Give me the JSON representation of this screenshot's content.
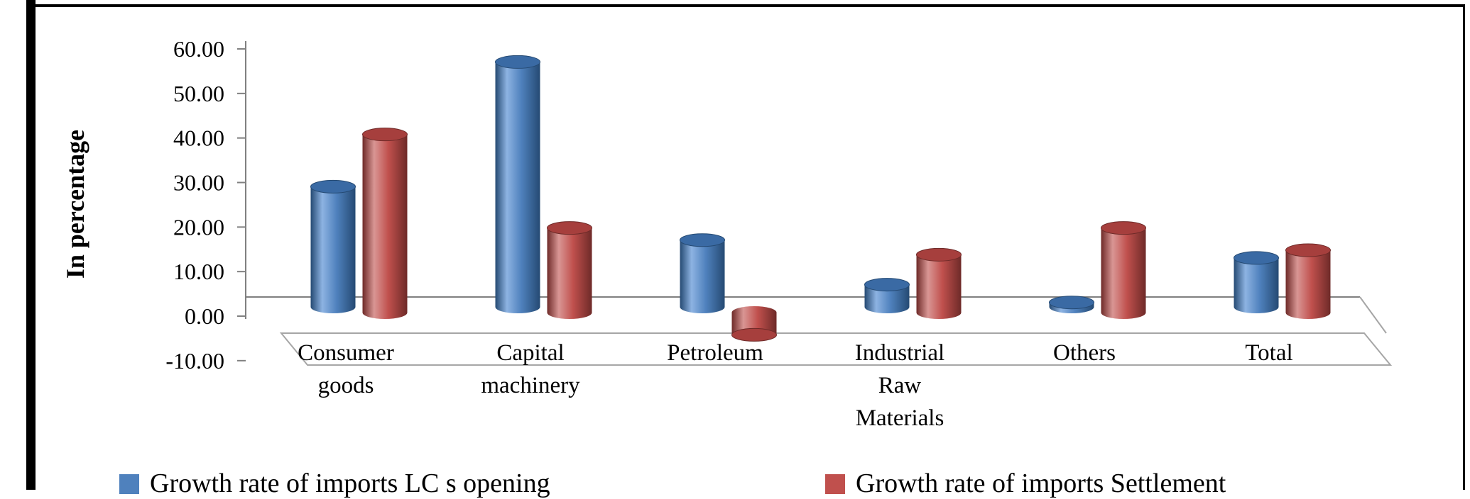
{
  "frame": {
    "border_color": "#000000"
  },
  "chart_data": {
    "type": "bar",
    "subtype": "3d-cylinder",
    "title": "",
    "ylabel": "In percentage",
    "xlabel": "",
    "ylim": [
      -10,
      60
    ],
    "ytick_step": 10,
    "ytick_labels": [
      "60.00",
      "50.00",
      "40.00",
      "30.00",
      "20.00",
      "10.00",
      "0.00",
      "-10.00"
    ],
    "grid": "zero-line-only",
    "legend_position": "bottom",
    "categories": [
      "Consumer goods",
      "Capital machinery",
      "Petroleum",
      "Industrial Raw Materials",
      "Others",
      "Total"
    ],
    "category_lines": [
      [
        "Consumer",
        "goods"
      ],
      [
        "Capital",
        "machinery"
      ],
      [
        "Petroleum"
      ],
      [
        "Industrial",
        "Raw",
        "Materials"
      ],
      [
        "Others"
      ],
      [
        "Total"
      ]
    ],
    "series": [
      {
        "name": "Growth rate of imports LC s opening",
        "values": [
          27,
          55,
          15,
          5,
          1,
          11
        ],
        "color": "#4f81bd",
        "color_light": "#8db3e2",
        "color_dark": "#254a73",
        "color_cap": "#3a6aa4"
      },
      {
        "name": "Growth rate of imports Settlement",
        "values": [
          40,
          19,
          -5,
          13,
          19,
          14
        ],
        "color": "#c0504d",
        "color_light": "#d99694",
        "color_dark": "#6e2a28",
        "color_cap": "#a63f3d"
      }
    ],
    "axis_color": "#808080",
    "floor_color": "#a6a6a6"
  }
}
